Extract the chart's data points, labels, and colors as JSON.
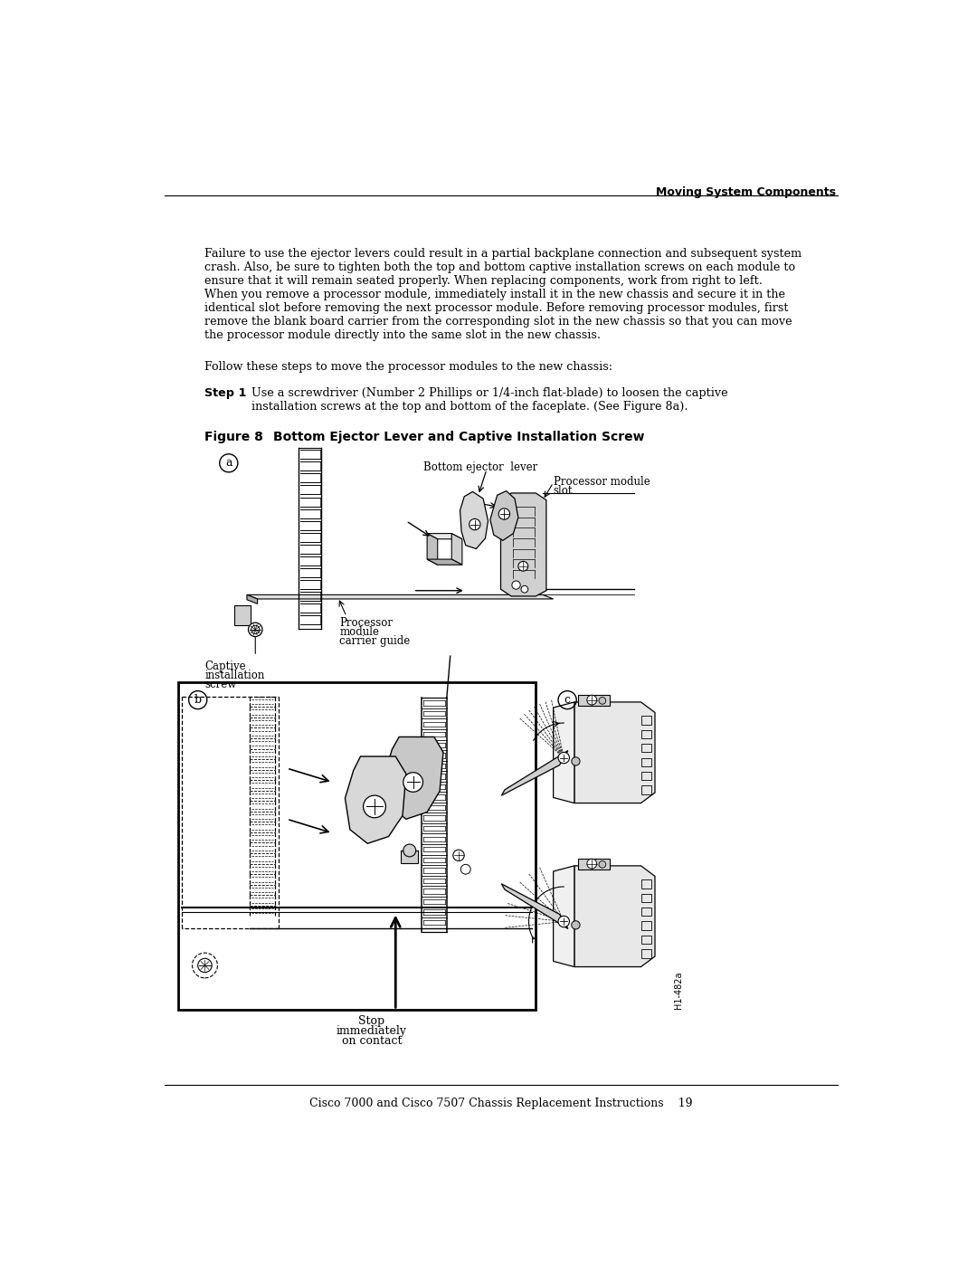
{
  "page_title": "Moving System Components",
  "page_number": "19",
  "footer_text": "Cisco 7000 and Cisco 7507 Chassis Replacement Instructions",
  "body_text_lines": [
    "Failure to use the ejector levers could result in a partial backplane connection and subsequent system",
    "crash. Also, be sure to tighten both the top and bottom captive installation screws on each module to",
    "ensure that it will remain seated properly. When replacing components, work from right to left.",
    "When you remove a processor module, immediately install it in the new chassis and secure it in the",
    "identical slot before removing the next processor module. Before removing processor modules, first",
    "remove the blank board carrier from the corresponding slot in the new chassis so that you can move",
    "the processor module directly into the same slot in the new chassis."
  ],
  "follow_text": "Follow these steps to move the processor modules to the new chassis:",
  "step1_label": "Step 1",
  "step1_line1": "Use a screwdriver (Number 2 Phillips or 1/4-inch flat-blade) to loosen the captive",
  "step1_line2": "installation screws at the top and bottom of the faceplate. (See Figure 8a).",
  "figure_label": "Figure 8",
  "figure_title": "Bottom Ejector Lever and Captive Installation Screw",
  "background_color": "#ffffff",
  "text_color": "#000000",
  "gray_light": "#d8d8d8",
  "gray_mid": "#b8b8b8",
  "gray_dark": "#888888"
}
